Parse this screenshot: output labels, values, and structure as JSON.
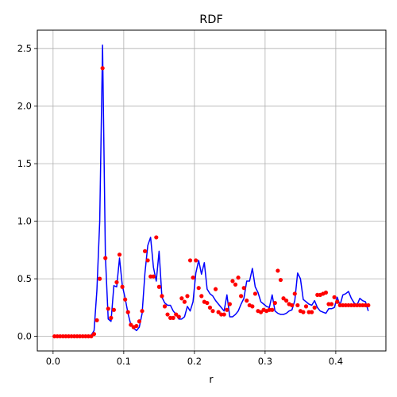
{
  "chart_data": {
    "type": "line",
    "title": "RDF",
    "xlabel": "r",
    "ylabel": "",
    "xlim": [
      -0.0223,
      0.4709
    ],
    "ylim": [
      -0.127,
      2.66
    ],
    "xticks": [
      0.0,
      0.1,
      0.2,
      0.3,
      0.4
    ],
    "xtick_labels": [
      "0.0",
      "0.1",
      "0.2",
      "0.3",
      "0.4"
    ],
    "yticks": [
      0.0,
      0.5,
      1.0,
      1.5,
      2.0,
      2.5
    ],
    "ytick_labels": [
      "0.0",
      "0.5",
      "1.0",
      "1.5",
      "2.0",
      "2.5"
    ],
    "grid": true,
    "line_color": "#0000ff",
    "marker_color": "#ff0000",
    "series": [
      {
        "kind": "line",
        "x": [
          0.002,
          0.006,
          0.01,
          0.014,
          0.018,
          0.022,
          0.026,
          0.03,
          0.034,
          0.038,
          0.042,
          0.046,
          0.05,
          0.054,
          0.058,
          0.062,
          0.066,
          0.07,
          0.074,
          0.078,
          0.082,
          0.086,
          0.09,
          0.094,
          0.098,
          0.102,
          0.106,
          0.11,
          0.114,
          0.118,
          0.122,
          0.126,
          0.13,
          0.134,
          0.138,
          0.142,
          0.146,
          0.15,
          0.154,
          0.158,
          0.162,
          0.166,
          0.17,
          0.174,
          0.178,
          0.182,
          0.186,
          0.19,
          0.194,
          0.198,
          0.202,
          0.206,
          0.21,
          0.214,
          0.218,
          0.222,
          0.226,
          0.23,
          0.234,
          0.238,
          0.242,
          0.246,
          0.25,
          0.254,
          0.258,
          0.262,
          0.266,
          0.27,
          0.274,
          0.278,
          0.282,
          0.286,
          0.29,
          0.294,
          0.298,
          0.302,
          0.306,
          0.31,
          0.314,
          0.318,
          0.322,
          0.326,
          0.33,
          0.334,
          0.338,
          0.342,
          0.346,
          0.35,
          0.354,
          0.358,
          0.362,
          0.366,
          0.37,
          0.374,
          0.378,
          0.382,
          0.386,
          0.39,
          0.394,
          0.398,
          0.402,
          0.406,
          0.41,
          0.414,
          0.418,
          0.422,
          0.426,
          0.43,
          0.434,
          0.438,
          0.442,
          0.446
        ],
        "y": [
          0,
          0,
          0,
          0,
          0,
          0,
          0,
          0,
          0,
          0,
          0,
          0,
          0,
          0.01,
          0.05,
          0.4,
          1.0,
          2.53,
          0.7,
          0.15,
          0.13,
          0.44,
          0.43,
          0.68,
          0.44,
          0.33,
          0.2,
          0.1,
          0.07,
          0.05,
          0.08,
          0.2,
          0.55,
          0.79,
          0.86,
          0.6,
          0.48,
          0.74,
          0.34,
          0.29,
          0.27,
          0.27,
          0.22,
          0.19,
          0.15,
          0.15,
          0.17,
          0.26,
          0.22,
          0.3,
          0.55,
          0.66,
          0.54,
          0.64,
          0.41,
          0.37,
          0.35,
          0.31,
          0.28,
          0.25,
          0.22,
          0.36,
          0.17,
          0.17,
          0.19,
          0.22,
          0.28,
          0.33,
          0.48,
          0.48,
          0.59,
          0.43,
          0.38,
          0.3,
          0.28,
          0.26,
          0.25,
          0.36,
          0.22,
          0.2,
          0.19,
          0.19,
          0.2,
          0.22,
          0.23,
          0.31,
          0.55,
          0.5,
          0.32,
          0.3,
          0.28,
          0.27,
          0.31,
          0.25,
          0.22,
          0.21,
          0.2,
          0.24,
          0.24,
          0.25,
          0.34,
          0.27,
          0.36,
          0.37,
          0.39,
          0.33,
          0.29,
          0.27,
          0.33,
          0.31,
          0.3,
          0.22
        ]
      },
      {
        "kind": "scatter",
        "x": [
          0.002,
          0.006,
          0.01,
          0.014,
          0.018,
          0.022,
          0.026,
          0.03,
          0.034,
          0.038,
          0.042,
          0.046,
          0.05,
          0.054,
          0.058,
          0.062,
          0.066,
          0.07,
          0.074,
          0.078,
          0.082,
          0.086,
          0.09,
          0.094,
          0.098,
          0.102,
          0.106,
          0.11,
          0.114,
          0.118,
          0.122,
          0.126,
          0.13,
          0.134,
          0.138,
          0.142,
          0.146,
          0.15,
          0.154,
          0.158,
          0.162,
          0.166,
          0.17,
          0.174,
          0.178,
          0.182,
          0.186,
          0.19,
          0.194,
          0.198,
          0.202,
          0.206,
          0.21,
          0.214,
          0.218,
          0.222,
          0.226,
          0.23,
          0.234,
          0.238,
          0.242,
          0.246,
          0.25,
          0.254,
          0.258,
          0.262,
          0.266,
          0.27,
          0.274,
          0.278,
          0.282,
          0.286,
          0.29,
          0.294,
          0.298,
          0.302,
          0.306,
          0.31,
          0.314,
          0.318,
          0.322,
          0.326,
          0.33,
          0.334,
          0.338,
          0.342,
          0.346,
          0.35,
          0.354,
          0.358,
          0.362,
          0.366,
          0.37,
          0.374,
          0.378,
          0.382,
          0.386,
          0.39,
          0.394,
          0.398,
          0.402,
          0.406,
          0.41,
          0.414,
          0.418,
          0.422,
          0.426,
          0.43,
          0.434,
          0.438,
          0.442,
          0.446
        ],
        "y": [
          0,
          0,
          0,
          0,
          0,
          0,
          0,
          0,
          0,
          0,
          0,
          0,
          0,
          0,
          0.02,
          0.14,
          0.5,
          2.33,
          0.68,
          0.24,
          0.16,
          0.23,
          0.47,
          0.71,
          0.43,
          0.32,
          0.21,
          0.1,
          0.08,
          0.09,
          0.13,
          0.22,
          0.74,
          0.66,
          0.52,
          0.52,
          0.86,
          0.43,
          0.35,
          0.26,
          0.19,
          0.16,
          0.16,
          0.19,
          0.17,
          0.33,
          0.3,
          0.35,
          0.66,
          0.51,
          0.66,
          0.42,
          0.35,
          0.3,
          0.29,
          0.25,
          0.22,
          0.41,
          0.21,
          0.19,
          0.19,
          0.23,
          0.28,
          0.48,
          0.45,
          0.51,
          0.35,
          0.42,
          0.31,
          0.27,
          0.26,
          0.37,
          0.22,
          0.21,
          0.23,
          0.22,
          0.23,
          0.23,
          0.29,
          0.57,
          0.49,
          0.33,
          0.31,
          0.28,
          0.27,
          0.37,
          0.27,
          0.22,
          0.21,
          0.26,
          0.21,
          0.21,
          0.25,
          0.36,
          0.36,
          0.37,
          0.38,
          0.28,
          0.28,
          0.34,
          0.3,
          0.27,
          0.27,
          0.27,
          0.27,
          0.27,
          0.27,
          0.27,
          0.27,
          0.27,
          0.27,
          0.27
        ]
      }
    ]
  }
}
